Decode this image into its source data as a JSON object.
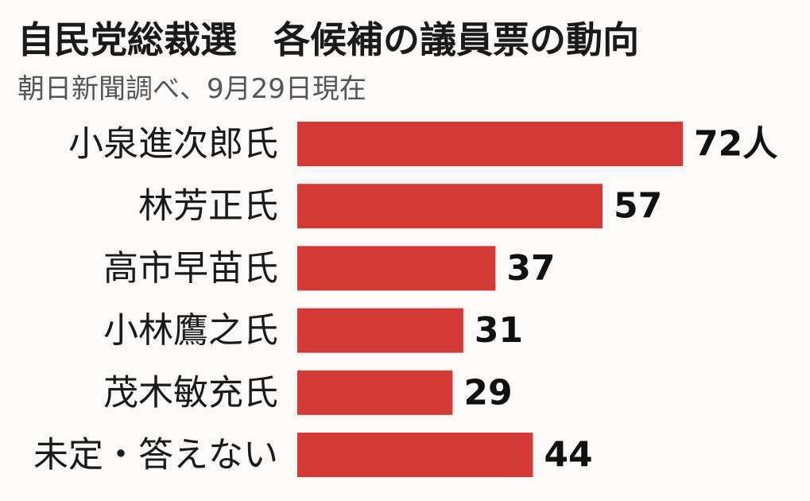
{
  "header": {
    "title": "自民党総裁選　各候補の議員票の動向",
    "subtitle": "朝日新聞調べ、9月29日現在"
  },
  "chart_data": {
    "type": "bar",
    "orientation": "horizontal",
    "categories": [
      "小泉進次郎氏",
      "林芳正氏",
      "高市早苗氏",
      "小林鷹之氏",
      "茂木敏充氏",
      "未定・答えない"
    ],
    "values": [
      72,
      57,
      37,
      31,
      29,
      44
    ],
    "value_labels": [
      "72人",
      "57",
      "37",
      "31",
      "29",
      "44"
    ],
    "bar_color": "#d43a35",
    "title": "自民党総裁選　各候補の議員票の動向",
    "subtitle": "朝日新聞調べ、9月29日現在",
    "grid": false
  }
}
